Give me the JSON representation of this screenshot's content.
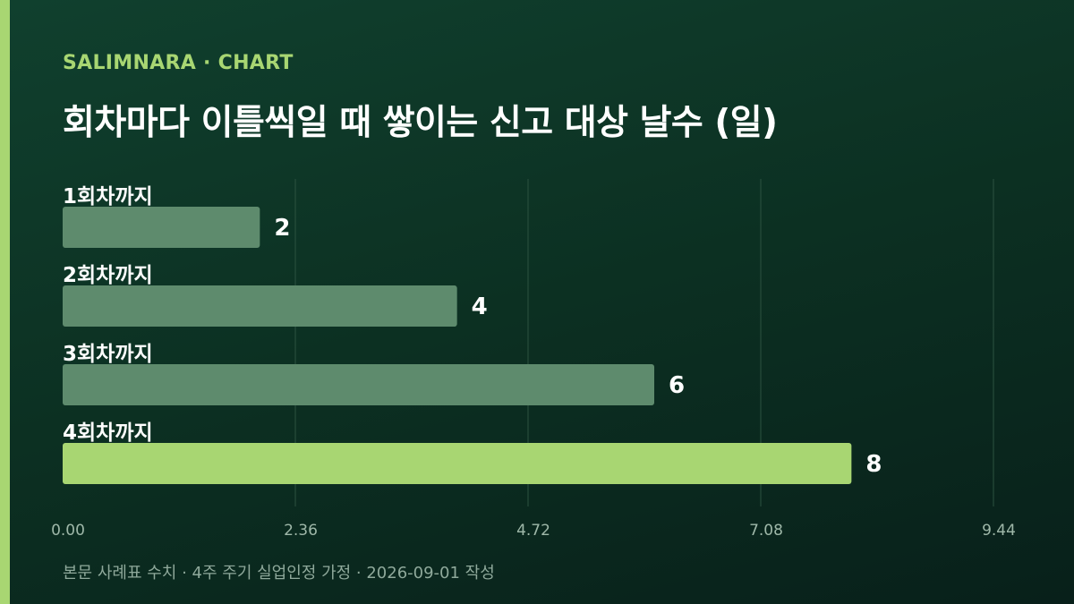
{
  "header": {
    "eyebrow": "SALIMNARA · CHART",
    "title": "회차마다 이틀씩일 때 쌓이는 신고 대상 날수 (일)"
  },
  "footnote": "본문 사례표 수치 · 4주 주기 실업인정 가정 · 2026-09-01 작성",
  "colors": {
    "accent": "#a8d672",
    "bar_default": "#5e8b6d",
    "bar_highlight": "#a8d672",
    "gridline": "#2c5240"
  },
  "chart_data": {
    "type": "bar",
    "orientation": "horizontal",
    "title": "회차마다 이틀씩일 때 쌓이는 신고 대상 날수 (일)",
    "xlabel": "",
    "ylabel": "",
    "categories": [
      "1회차까지",
      "2회차까지",
      "3회차까지",
      "4회차까지"
    ],
    "values": [
      2,
      4,
      6,
      8
    ],
    "value_labels": [
      "2",
      "4",
      "6",
      "8"
    ],
    "highlight_index": 3,
    "xlim": [
      0,
      9.44
    ],
    "ticks": [
      0,
      2.36,
      4.72,
      7.08,
      9.44
    ],
    "tick_labels": [
      "0.00",
      "2.36",
      "4.72",
      "7.08",
      "9.44"
    ],
    "grid": true,
    "legend": "none"
  }
}
